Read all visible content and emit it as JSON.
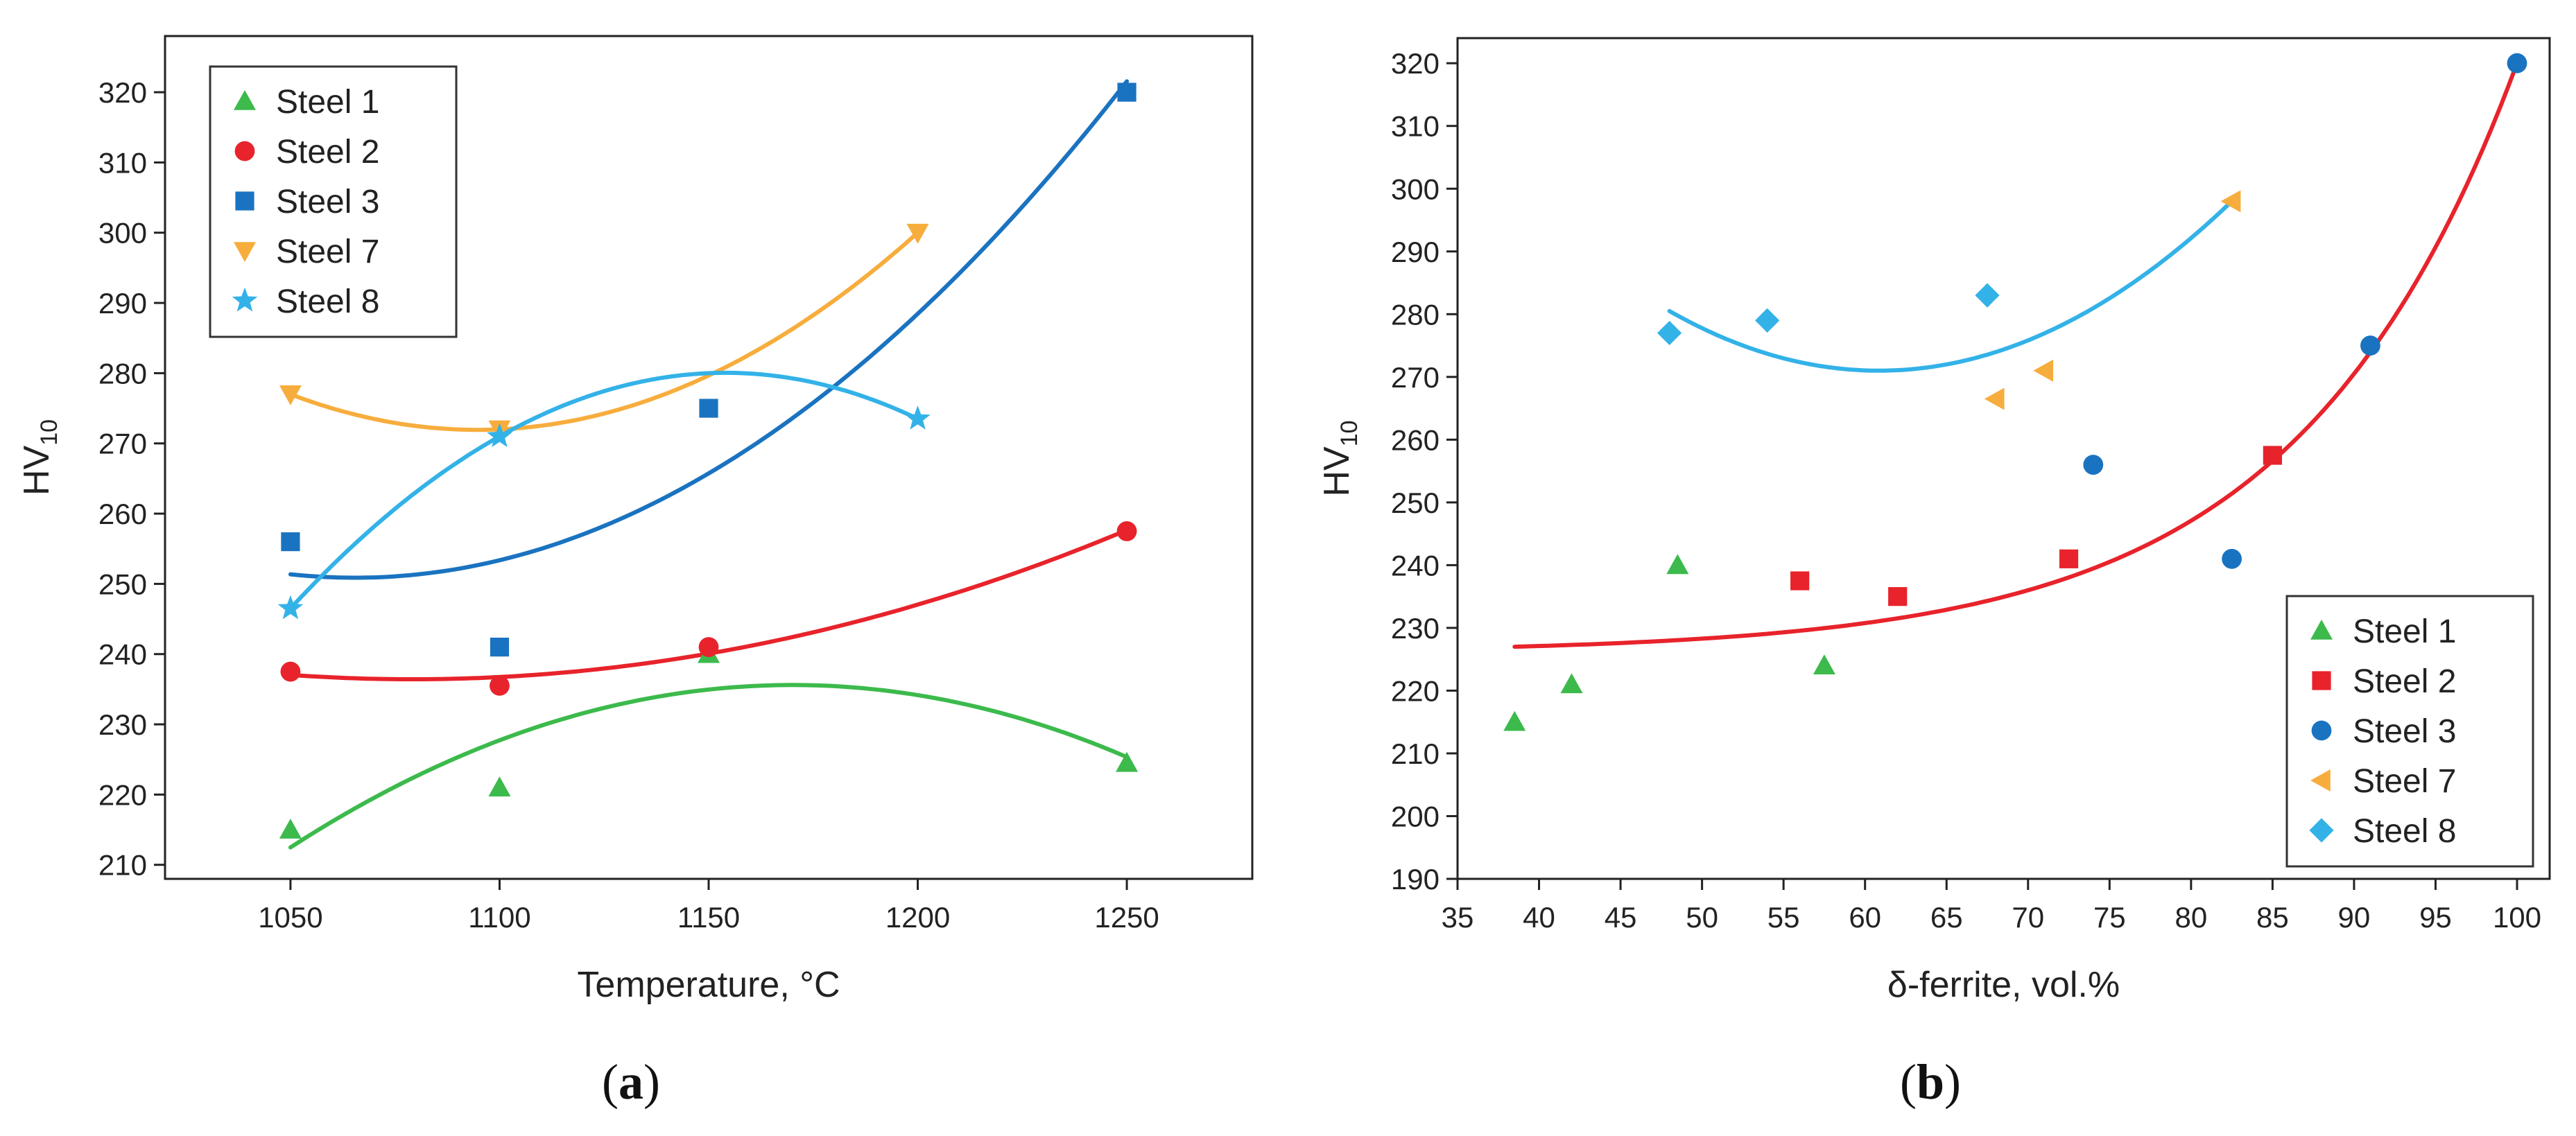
{
  "chart_data": [
    {
      "panel": "(a)",
      "type": "scatter",
      "xlabel": "Temperature, °C",
      "ylabel": "HV",
      "ylabel_sub": "10",
      "xlim": [
        1020,
        1280
      ],
      "ylim": [
        208,
        328
      ],
      "xticks": [
        1050,
        1100,
        1150,
        1200,
        1250
      ],
      "yticks": [
        210,
        220,
        230,
        240,
        250,
        260,
        270,
        280,
        290,
        300,
        310,
        320
      ],
      "legend_position": "top-left",
      "series": [
        {
          "name": "Steel 1",
          "color": "#3cba4c",
          "marker": "triangle-up",
          "x": [
            1050,
            1100,
            1150,
            1250
          ],
          "y": [
            215,
            221,
            240,
            224.5
          ],
          "fit": {
            "type": "poly2",
            "x_range": [
              1050,
              1250
            ]
          }
        },
        {
          "name": "Steel 2",
          "color": "#e8232b",
          "marker": "circle",
          "x": [
            1050,
            1100,
            1150,
            1250
          ],
          "y": [
            237.5,
            235.5,
            241,
            257.5
          ],
          "fit": {
            "type": "poly2",
            "x_range": [
              1050,
              1250
            ]
          }
        },
        {
          "name": "Steel 3",
          "color": "#1a73c0",
          "marker": "square",
          "x": [
            1050,
            1100,
            1150,
            1250
          ],
          "y": [
            256,
            241,
            275,
            320
          ],
          "fit": {
            "type": "poly2",
            "x_range": [
              1050,
              1250
            ]
          }
        },
        {
          "name": "Steel 7",
          "color": "#f7ad3d",
          "marker": "triangle-down",
          "x": [
            1050,
            1100,
            1200
          ],
          "y": [
            277,
            272,
            300
          ],
          "fit": {
            "type": "poly2",
            "x_range": [
              1050,
              1200
            ]
          }
        },
        {
          "name": "Steel 8",
          "color": "#33b2e8",
          "marker": "star",
          "x": [
            1050,
            1100,
            1200
          ],
          "y": [
            246.5,
            271,
            273.5
          ],
          "fit": {
            "type": "poly2",
            "x_range": [
              1050,
              1200
            ]
          }
        }
      ]
    },
    {
      "panel": "(b)",
      "type": "scatter",
      "xlabel": "δ-ferrite, vol.%",
      "ylabel": "HV",
      "ylabel_sub": "10",
      "xlim": [
        35,
        102
      ],
      "ylim": [
        190,
        324
      ],
      "xticks": [
        35,
        40,
        45,
        50,
        55,
        60,
        65,
        70,
        75,
        80,
        85,
        90,
        95,
        100
      ],
      "yticks": [
        190,
        200,
        210,
        220,
        230,
        240,
        250,
        260,
        270,
        280,
        290,
        300,
        310,
        320
      ],
      "legend_position": "bottom-right",
      "series": [
        {
          "name": "Steel 1",
          "color": "#3cba4c",
          "marker": "triangle-up",
          "x": [
            38.5,
            42,
            48.5,
            57.5
          ],
          "y": [
            215,
            221,
            240,
            224
          ]
        },
        {
          "name": "Steel 2",
          "color": "#e8232b",
          "marker": "square",
          "x": [
            56,
            62,
            72.5,
            85
          ],
          "y": [
            237.5,
            235,
            241,
            257.5
          ]
        },
        {
          "name": "Steel 3",
          "color": "#1a73c0",
          "marker": "circle",
          "x": [
            74,
            82.5,
            91,
            100
          ],
          "y": [
            256,
            241,
            275,
            320
          ]
        },
        {
          "name": "Steel 7",
          "color": "#f7ad3d",
          "marker": "triangle-left",
          "x": [
            68,
            71,
            82.5
          ],
          "y": [
            266.5,
            271,
            298
          ]
        },
        {
          "name": "Steel 8",
          "color": "#33b2e8",
          "marker": "diamond",
          "x": [
            48,
            54,
            67.5
          ],
          "y": [
            277,
            279,
            283
          ]
        }
      ],
      "fits": [
        {
          "name": "Steel 8 trend",
          "color": "#33b2e8",
          "type": "poly2",
          "x": [
            48,
            61,
            82.5
          ],
          "y": [
            280.5,
            271,
            298
          ]
        },
        {
          "name": "overall trend",
          "color": "#e8232b",
          "type": "exp",
          "x": [
            38.5,
            70,
            100
          ],
          "y": [
            227,
            236,
            320
          ]
        }
      ]
    }
  ],
  "panel_labels": {
    "a": "a",
    "b": "b"
  }
}
